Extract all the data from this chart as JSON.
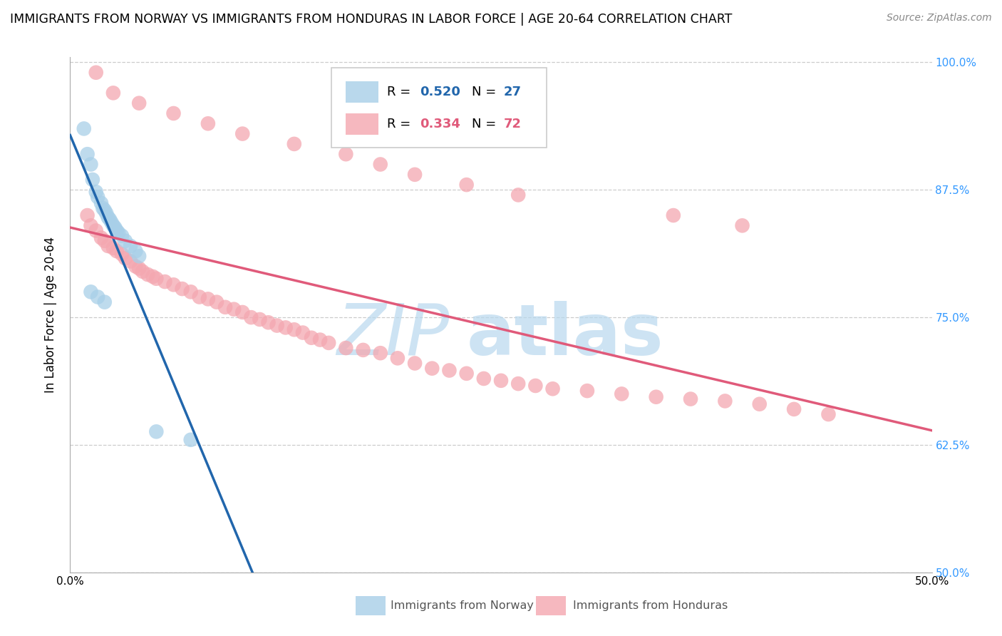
{
  "title": "IMMIGRANTS FROM NORWAY VS IMMIGRANTS FROM HONDURAS IN LABOR FORCE | AGE 20-64 CORRELATION CHART",
  "source": "Source: ZipAtlas.com",
  "ylabel": "In Labor Force | Age 20-64",
  "xlim": [
    0.0,
    0.5
  ],
  "ylim": [
    0.5,
    1.005
  ],
  "yticks": [
    0.5,
    0.625,
    0.75,
    0.875,
    1.0
  ],
  "ytick_labels": [
    "50.0%",
    "62.5%",
    "75.0%",
    "87.5%",
    "100.0%"
  ],
  "xticks": [
    0.0,
    0.0625,
    0.125,
    0.1875,
    0.25,
    0.3125,
    0.375,
    0.4375,
    0.5
  ],
  "xtick_labels_show": [
    "0.0%",
    "",
    "",
    "",
    "",
    "",
    "",
    "",
    "50.0%"
  ],
  "norway_R": 0.52,
  "norway_N": 27,
  "honduras_R": 0.334,
  "honduras_N": 72,
  "norway_color": "#a8cfe8",
  "honduras_color": "#f4a7b0",
  "norway_line_color": "#2166ac",
  "honduras_line_color": "#e05a7a",
  "norway_marker_edge": "none",
  "honduras_marker_edge": "none",
  "norway_x": [
    0.008,
    0.01,
    0.012,
    0.013,
    0.015,
    0.016,
    0.018,
    0.019,
    0.02,
    0.021,
    0.022,
    0.023,
    0.024,
    0.025,
    0.026,
    0.027,
    0.028,
    0.03,
    0.032,
    0.035,
    0.038,
    0.04,
    0.012,
    0.016,
    0.02,
    0.05,
    0.07
  ],
  "norway_y": [
    0.935,
    0.91,
    0.9,
    0.885,
    0.873,
    0.868,
    0.862,
    0.857,
    0.855,
    0.852,
    0.848,
    0.846,
    0.843,
    0.84,
    0.838,
    0.835,
    0.833,
    0.83,
    0.825,
    0.82,
    0.815,
    0.81,
    0.775,
    0.77,
    0.765,
    0.638,
    0.63
  ],
  "honduras_x": [
    0.01,
    0.012,
    0.015,
    0.018,
    0.02,
    0.022,
    0.025,
    0.027,
    0.03,
    0.032,
    0.035,
    0.038,
    0.04,
    0.042,
    0.045,
    0.048,
    0.05,
    0.055,
    0.06,
    0.065,
    0.07,
    0.075,
    0.08,
    0.085,
    0.09,
    0.095,
    0.1,
    0.105,
    0.11,
    0.115,
    0.12,
    0.125,
    0.13,
    0.135,
    0.14,
    0.145,
    0.15,
    0.16,
    0.17,
    0.18,
    0.19,
    0.2,
    0.21,
    0.22,
    0.23,
    0.24,
    0.25,
    0.26,
    0.27,
    0.28,
    0.3,
    0.32,
    0.34,
    0.36,
    0.38,
    0.4,
    0.42,
    0.44,
    0.015,
    0.025,
    0.04,
    0.06,
    0.08,
    0.1,
    0.13,
    0.16,
    0.18,
    0.2,
    0.23,
    0.26,
    0.35,
    0.39
  ],
  "honduras_y": [
    0.85,
    0.84,
    0.835,
    0.828,
    0.825,
    0.82,
    0.818,
    0.815,
    0.812,
    0.808,
    0.805,
    0.8,
    0.798,
    0.795,
    0.792,
    0.79,
    0.788,
    0.785,
    0.782,
    0.778,
    0.775,
    0.77,
    0.768,
    0.765,
    0.76,
    0.758,
    0.755,
    0.75,
    0.748,
    0.745,
    0.742,
    0.74,
    0.738,
    0.735,
    0.73,
    0.728,
    0.725,
    0.72,
    0.718,
    0.715,
    0.71,
    0.705,
    0.7,
    0.698,
    0.695,
    0.69,
    0.688,
    0.685,
    0.683,
    0.68,
    0.678,
    0.675,
    0.672,
    0.67,
    0.668,
    0.665,
    0.66,
    0.655,
    0.99,
    0.97,
    0.96,
    0.95,
    0.94,
    0.93,
    0.92,
    0.91,
    0.9,
    0.89,
    0.88,
    0.87,
    0.85,
    0.84
  ],
  "watermark_zip_color": "#c8dff0",
  "watermark_atlas_color": "#c8dff0"
}
